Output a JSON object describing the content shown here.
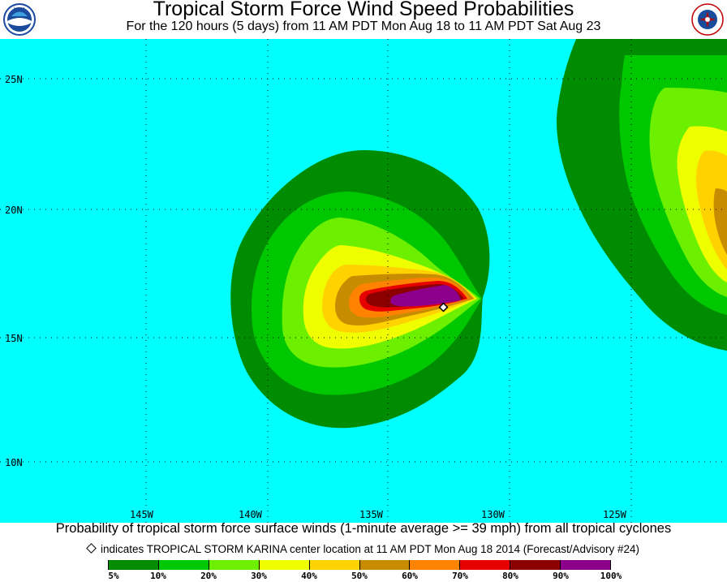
{
  "header": {
    "title": "Tropical Storm Force Wind Speed Probabilities",
    "subtitle": "For the 120 hours (5 days) from 11 AM PDT Mon Aug 18 to 11 AM PDT Sat Aug 23",
    "left_logo": "noaa-logo",
    "right_logo": "national-weather-service-logo",
    "right_logo_text": "NATIONAL WEATHER SERVICE"
  },
  "map": {
    "ocean_color": "#00FFFF",
    "latitude_labels": [
      "25N",
      "20N",
      "15N",
      "10N"
    ],
    "longitude_labels": [
      "145W",
      "140W",
      "135W",
      "130W",
      "125W"
    ],
    "storm_marker": "diamond"
  },
  "footer": {
    "caption": "Probability of tropical storm force surface winds (1-minute average >= 39 mph) from all tropical cyclones",
    "note": "indicates TROPICAL STORM KARINA center location at 11 AM PDT Mon Aug 18 2014 (Forecast/Advisory #24)",
    "legend": {
      "colors": [
        "#008C00",
        "#00C800",
        "#6CF000",
        "#F0FF00",
        "#FFD200",
        "#C88C00",
        "#FF8200",
        "#E60000",
        "#8C0000",
        "#8C008C"
      ],
      "labels": [
        "5%",
        "10%",
        "20%",
        "30%",
        "40%",
        "50%",
        "60%",
        "70%",
        "80%",
        "90%",
        "100%"
      ]
    }
  }
}
